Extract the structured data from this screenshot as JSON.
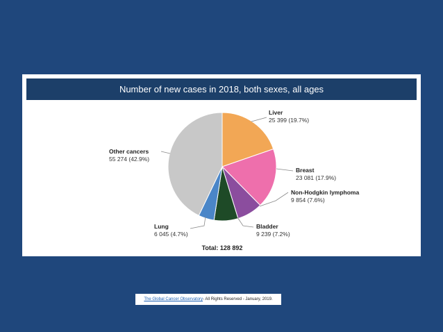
{
  "chart_data": {
    "type": "pie",
    "title": "Number of new cases in 2018, both sexes, all ages",
    "slices": [
      {
        "label": "Liver",
        "value": 25399,
        "display": "25 399 (19.7%)",
        "percent": 19.7,
        "color": "#f2a755"
      },
      {
        "label": "Breast",
        "value": 23081,
        "display": "23 081 (17.9%)",
        "percent": 17.9,
        "color": "#ee6fac"
      },
      {
        "label": "Non-Hodgkin lymphoma",
        "value": 9854,
        "display": "9 854 (7.6%)",
        "percent": 7.6,
        "color": "#8b4d9e"
      },
      {
        "label": "Bladder",
        "value": 9239,
        "display": "9 239 (7.2%)",
        "percent": 7.2,
        "color": "#1e4a27"
      },
      {
        "label": "Lung",
        "value": 6045,
        "display": "6 045 (4.7%)",
        "percent": 4.7,
        "color": "#4a86c8"
      },
      {
        "label": "Other cancers",
        "value": 55274,
        "display": "55 274 (42.9%)",
        "percent": 42.9,
        "color": "#c8c8c8"
      }
    ],
    "total_label": "Total: 128 892"
  },
  "credit": {
    "link": "The Global Cancer Observatory",
    "text": " - All Rights Reserved - January, 2019."
  }
}
